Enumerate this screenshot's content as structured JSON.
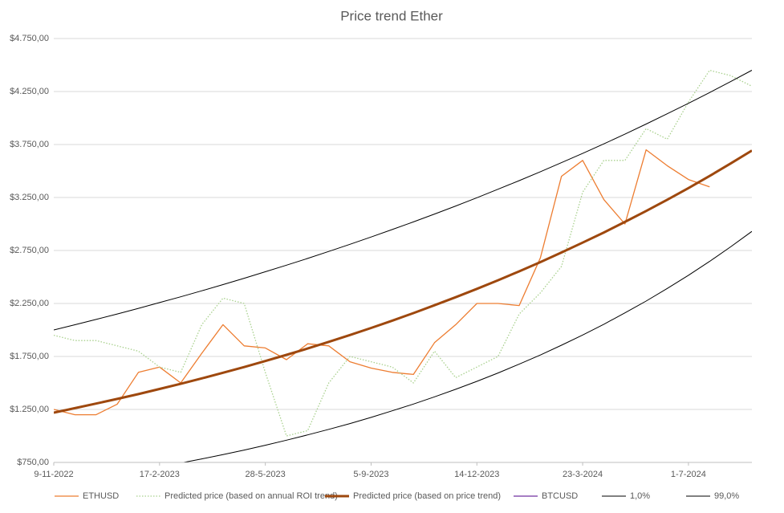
{
  "chart_data": {
    "type": "line",
    "title": "Price trend Ether",
    "x": [
      "9-11-2022",
      "29-11-2022",
      "19-12-2022",
      "8-1-2023",
      "28-1-2023",
      "17-2-2023",
      "9-3-2023",
      "29-3-2023",
      "18-4-2023",
      "8-5-2023",
      "28-5-2023",
      "17-6-2023",
      "7-7-2023",
      "27-7-2023",
      "16-8-2023",
      "5-9-2023",
      "25-9-2023",
      "15-10-2023",
      "4-11-2023",
      "24-11-2023",
      "14-12-2023",
      "3-1-2024",
      "23-1-2024",
      "12-2-2024",
      "3-3-2024",
      "23-3-2024",
      "12-4-2024",
      "2-5-2024",
      "22-5-2024",
      "11-6-2024",
      "1-7-2024",
      "21-7-2024",
      "10-8-2024",
      "30-8-2024"
    ],
    "xlim": [
      "9-11-2022",
      "30-8-2024"
    ],
    "xticks": [
      "9-11-2022",
      "17-2-2023",
      "28-5-2023",
      "5-9-2023",
      "14-12-2023",
      "23-3-2024",
      "1-7-2024"
    ],
    "ylim": [
      750,
      4750
    ],
    "yticks": [
      {
        "value": 750,
        "label": "$750,00"
      },
      {
        "value": 1250,
        "label": "$1.250,00"
      },
      {
        "value": 1750,
        "label": "$1.750,00"
      },
      {
        "value": 2250,
        "label": "$2.250,00"
      },
      {
        "value": 2750,
        "label": "$2.750,00"
      },
      {
        "value": 3250,
        "label": "$3.250,00"
      },
      {
        "value": 3750,
        "label": "$3.750,00"
      },
      {
        "value": 4250,
        "label": "$4.250,00"
      },
      {
        "value": 4750,
        "label": "$4.750,00"
      }
    ],
    "grid": true,
    "legend": "bottom",
    "series": [
      {
        "name": "ETHUSD",
        "color": "#ED7D31",
        "style": "solid",
        "width": 1.3,
        "values": [
          1250,
          1200,
          1200,
          1300,
          1600,
          1650,
          1500,
          1780,
          2050,
          1850,
          1830,
          1720,
          1870,
          1850,
          1700,
          1640,
          1600,
          1580,
          1880,
          2050,
          2250,
          2250,
          2230,
          2680,
          3450,
          3600,
          3230,
          3000,
          3700,
          3550,
          3420,
          3350,
          null,
          null
        ]
      },
      {
        "name": "Predicted price (based on annual ROI trend)",
        "color": "#A9D18E",
        "style": "dotted",
        "width": 1.3,
        "values": [
          1950,
          1900,
          1900,
          1850,
          1800,
          1650,
          1600,
          2050,
          2300,
          2250,
          1600,
          1000,
          1050,
          1500,
          1750,
          1700,
          1650,
          1500,
          1800,
          1550,
          1650,
          1750,
          2150,
          2350,
          2600,
          3300,
          3600,
          3600,
          3900,
          3800,
          4150,
          4450,
          4400,
          4300
        ]
      },
      {
        "name": "Predicted price (based on price trend)",
        "color": "#9E480E",
        "style": "solid",
        "width": 3,
        "values": [
          1220,
          1262,
          1305,
          1349,
          1395,
          1443,
          1492,
          1543,
          1596,
          1650,
          1707,
          1765,
          1825,
          1888,
          1952,
          2019,
          2088,
          2159,
          2233,
          2309,
          2388,
          2469,
          2553,
          2640,
          2731,
          2824,
          2920,
          3020,
          3123,
          3229,
          3339,
          3453,
          3571,
          3693
        ]
      },
      {
        "name": "BTCUSD",
        "color": "#7030A0",
        "style": "solid",
        "width": 1.3,
        "values": [
          null,
          null,
          null,
          null,
          null,
          null,
          null,
          null,
          null,
          null,
          null,
          null,
          null,
          null,
          null,
          null,
          null,
          null,
          null,
          null,
          null,
          null,
          null,
          null,
          null,
          null,
          null,
          null,
          null,
          null,
          null,
          null,
          null,
          null
        ]
      },
      {
        "name": "1,0%",
        "color": "#000000",
        "style": "solid",
        "width": 1,
        "values": [
          549,
          578,
          608,
          640,
          673,
          708,
          745,
          783,
          824,
          867,
          912,
          960,
          1010,
          1062,
          1117,
          1175,
          1237,
          1301,
          1369,
          1440,
          1515,
          1594,
          1677,
          1764,
          1856,
          1952,
          2054,
          2161,
          2273,
          2392,
          2516,
          2647,
          2785,
          2930
        ]
      },
      {
        "name": "99,0%",
        "color": "#000000",
        "style": "solid",
        "width": 1,
        "values": [
          2000,
          2049,
          2099,
          2151,
          2204,
          2258,
          2313,
          2370,
          2428,
          2488,
          2549,
          2611,
          2675,
          2741,
          2808,
          2877,
          2948,
          3020,
          3094,
          3170,
          3248,
          3328,
          3409,
          3493,
          3579,
          3666,
          3756,
          3848,
          3943,
          4040,
          4139,
          4240,
          4344,
          4451
        ]
      }
    ]
  }
}
